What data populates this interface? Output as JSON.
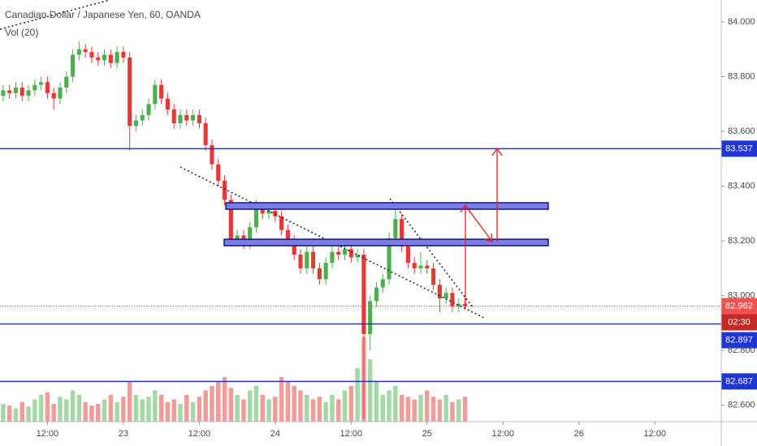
{
  "chart_data": {
    "type": "candlestick",
    "title": "Canadian Dollar / Japanese Yen, 60, OANDA",
    "subtitle": "Vol (20)",
    "categories": [
      null,
      null,
      null,
      null,
      null,
      null,
      null,
      "12:00",
      null,
      null,
      null,
      null,
      null,
      null,
      null,
      null,
      null,
      null,
      null,
      "23",
      null,
      null,
      null,
      null,
      null,
      null,
      null,
      null,
      null,
      null,
      null,
      "12:00",
      null,
      null,
      null,
      null,
      null,
      null,
      null,
      null,
      null,
      null,
      null,
      "24",
      null,
      null,
      null,
      null,
      null,
      null,
      null,
      null,
      null,
      null,
      null,
      "12:00",
      null,
      null,
      null,
      null,
      null,
      null,
      null,
      null,
      null,
      null,
      null,
      "25",
      null,
      null,
      null,
      null,
      null,
      null,
      null,
      null,
      null,
      null,
      null,
      "12:00",
      null,
      null,
      null,
      null,
      null,
      null,
      null,
      null,
      null,
      null,
      null,
      "26",
      null,
      null,
      null,
      null,
      null,
      null,
      null,
      null,
      null,
      null,
      null,
      "12:00",
      null,
      null,
      null,
      null,
      null,
      null,
      null,
      null,
      null,
      null
    ],
    "open": [
      83.73,
      83.75,
      83.74,
      83.76,
      83.73,
      83.75,
      83.77,
      83.78,
      83.74,
      83.72,
      83.76,
      83.8,
      83.88,
      83.9,
      83.89,
      83.87,
      83.86,
      83.88,
      83.85,
      83.89,
      83.87,
      83.62,
      83.64,
      83.66,
      83.7,
      83.77,
      83.72,
      83.68,
      83.63,
      83.66,
      83.64,
      83.66,
      83.63,
      83.55,
      83.48,
      83.42,
      83.35,
      83.2,
      83.22,
      83.19,
      83.25,
      83.33,
      83.3,
      83.31,
      83.29,
      83.24,
      83.2,
      83.15,
      83.1,
      83.16,
      83.1,
      83.06,
      83.12,
      83.16,
      83.15,
      83.17,
      83.14,
      83.15,
      82.86,
      82.98,
      83.03,
      83.06,
      83.21,
      83.28,
      83.18,
      83.12,
      83.1,
      83.11,
      83.1,
      83.04,
      82.99,
      83.01,
      82.96,
      82.97,
      null,
      null,
      null,
      null,
      null,
      null,
      null,
      null,
      null,
      null,
      null,
      null,
      null,
      null,
      null,
      null,
      null,
      null,
      null,
      null,
      null,
      null,
      null,
      null,
      null,
      null,
      null,
      null,
      null,
      null,
      null,
      null,
      null,
      null,
      null,
      null,
      null,
      null,
      null,
      null
    ],
    "high": [
      83.77,
      83.77,
      83.78,
      83.78,
      83.77,
      83.79,
      83.8,
      83.8,
      83.76,
      83.78,
      83.82,
      83.9,
      83.93,
      83.92,
      83.91,
      83.89,
      83.9,
      83.9,
      83.91,
      83.91,
      83.89,
      83.66,
      83.68,
      83.72,
      83.79,
      83.79,
      83.74,
      83.7,
      83.68,
      83.68,
      83.68,
      83.68,
      83.65,
      83.57,
      83.5,
      83.44,
      83.37,
      83.24,
      83.24,
      83.27,
      83.35,
      83.34,
      83.33,
      83.33,
      83.31,
      83.26,
      83.22,
      83.17,
      83.18,
      83.18,
      83.12,
      83.14,
      83.18,
      83.18,
      83.19,
      83.19,
      83.17,
      83.17,
      83.0,
      83.05,
      83.08,
      83.23,
      83.33,
      83.3,
      83.2,
      83.14,
      83.16,
      83.13,
      83.12,
      83.06,
      83.03,
      83.03,
      82.99,
      82.99,
      null,
      null,
      null,
      null,
      null,
      null,
      null,
      null,
      null,
      null,
      null,
      null,
      null,
      null,
      null,
      null,
      null,
      null,
      null,
      null,
      null,
      null,
      null,
      null,
      null,
      null,
      null,
      null,
      null,
      null,
      null,
      null,
      null,
      null,
      null,
      null,
      null,
      null,
      null,
      null
    ],
    "low": [
      83.71,
      83.72,
      83.72,
      83.71,
      83.71,
      83.73,
      83.75,
      83.72,
      83.68,
      83.7,
      83.74,
      83.78,
      83.86,
      83.87,
      83.85,
      83.84,
      83.84,
      83.83,
      83.83,
      83.85,
      83.53,
      83.6,
      83.62,
      83.64,
      83.68,
      83.7,
      83.66,
      83.61,
      83.61,
      83.62,
      83.62,
      83.61,
      83.53,
      83.46,
      83.4,
      83.33,
      83.18,
      83.18,
      83.17,
      83.17,
      83.23,
      83.28,
      83.28,
      83.27,
      83.22,
      83.18,
      83.13,
      83.08,
      83.08,
      83.08,
      83.04,
      83.04,
      83.1,
      83.13,
      83.13,
      83.12,
      83.12,
      82.55,
      82.8,
      82.96,
      83.01,
      83.04,
      83.19,
      83.16,
      83.1,
      83.08,
      83.08,
      83.08,
      83.02,
      82.94,
      82.97,
      82.94,
      82.94,
      82.95,
      null,
      null,
      null,
      null,
      null,
      null,
      null,
      null,
      null,
      null,
      null,
      null,
      null,
      null,
      null,
      null,
      null,
      null,
      null,
      null,
      null,
      null,
      null,
      null,
      null,
      null,
      null,
      null,
      null,
      null,
      null,
      null,
      null,
      null,
      null,
      null,
      null,
      null,
      null,
      null
    ],
    "close": [
      83.75,
      83.74,
      83.76,
      83.73,
      83.75,
      83.77,
      83.78,
      83.74,
      83.72,
      83.76,
      83.8,
      83.88,
      83.9,
      83.89,
      83.87,
      83.86,
      83.88,
      83.85,
      83.89,
      83.87,
      83.62,
      83.64,
      83.66,
      83.7,
      83.77,
      83.72,
      83.68,
      83.63,
      83.66,
      83.64,
      83.66,
      83.63,
      83.55,
      83.48,
      83.42,
      83.35,
      83.2,
      83.22,
      83.19,
      83.25,
      83.33,
      83.3,
      83.31,
      83.29,
      83.24,
      83.2,
      83.15,
      83.1,
      83.16,
      83.1,
      83.06,
      83.12,
      83.16,
      83.15,
      83.17,
      83.14,
      83.15,
      82.86,
      82.98,
      83.03,
      83.06,
      83.21,
      83.28,
      83.18,
      83.12,
      83.1,
      83.11,
      83.1,
      83.04,
      82.99,
      83.01,
      82.96,
      82.97,
      82.962,
      null,
      null,
      null,
      null,
      null,
      null,
      null,
      null,
      null,
      null,
      null,
      null,
      null,
      null,
      null,
      null,
      null,
      null,
      null,
      null,
      null,
      null,
      null,
      null,
      null,
      null,
      null,
      null,
      null,
      null,
      null,
      null,
      null,
      null,
      null,
      null,
      null,
      null,
      null,
      null
    ],
    "volume": [
      20,
      18,
      15,
      22,
      17,
      25,
      30,
      33,
      20,
      28,
      25,
      35,
      30,
      22,
      18,
      20,
      25,
      30,
      22,
      28,
      45,
      30,
      25,
      28,
      35,
      30,
      22,
      25,
      20,
      30,
      22,
      28,
      35,
      40,
      45,
      50,
      38,
      30,
      25,
      35,
      40,
      30,
      25,
      28,
      50,
      45,
      40,
      35,
      30,
      25,
      28,
      22,
      30,
      25,
      35,
      40,
      60,
      95,
      70,
      45,
      30,
      35,
      40,
      30,
      28,
      25,
      30,
      35,
      28,
      25,
      30,
      22,
      25,
      28,
      null,
      null,
      null,
      null,
      null,
      null,
      null,
      null,
      null,
      null,
      null,
      null,
      null,
      null,
      null,
      null,
      null,
      null,
      null,
      null,
      null,
      null,
      null,
      null,
      null,
      null,
      null,
      null,
      null,
      null,
      null,
      null,
      null,
      null,
      null,
      null,
      null,
      null,
      null,
      null
    ],
    "volume_ylim": [
      0,
      100
    ],
    "up_color": "#4caf50",
    "down_color": "#e53935",
    "ylim": [
      82.54,
      84.08
    ],
    "yticks": [
      {
        "value": 84,
        "label": "84.000"
      },
      {
        "value": 83.8,
        "label": "83.800"
      },
      {
        "value": 83.6,
        "label": "83.600"
      },
      {
        "value": 83.4,
        "label": "83.400"
      },
      {
        "value": 83.2,
        "label": "83.200"
      },
      {
        "value": 83,
        "label": "83.000"
      },
      {
        "value": 82.8,
        "label": "82.800"
      },
      {
        "value": 82.6,
        "label": "82.600"
      }
    ],
    "levels": [
      83.537,
      82.897,
      82.687
    ],
    "level_color": "#1f35d6",
    "current_price": 82.962,
    "current_color": "#f0524f",
    "countdown": "02:30"
  }
}
